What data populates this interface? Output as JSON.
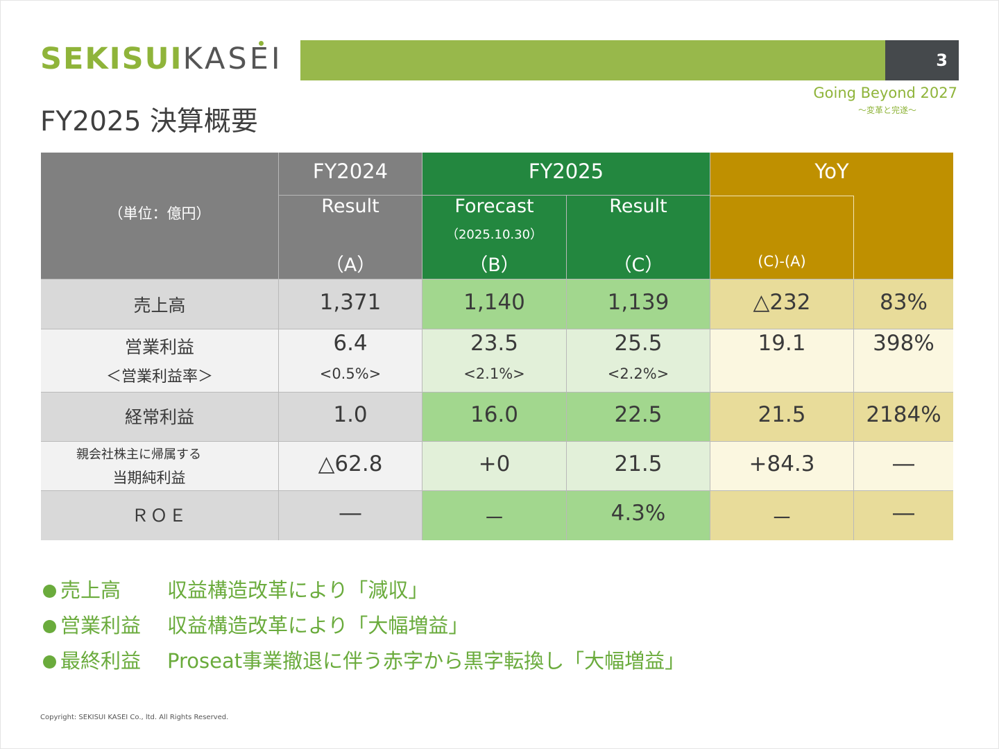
{
  "header": {
    "logo_bold": "SEKISUI",
    "logo_light": "KASEI",
    "page_number": "3",
    "slogan": "Going Beyond 2027",
    "slogan_sub": "～変革と完遂～",
    "title": "FY2025 決算概要"
  },
  "table": {
    "unit_label": "（単位：億円）",
    "fy2024": {
      "label": "FY2024",
      "sub": "Result",
      "code": "（A）"
    },
    "fy2025": {
      "label": "FY2025",
      "forecast": {
        "label": "Forecast",
        "date": "（2025.10.30）",
        "code": "（B）"
      },
      "result": {
        "label": "Result",
        "code": "（C）"
      }
    },
    "yoy": {
      "label": "YoY",
      "diff_label": "(C)-(A)"
    },
    "rows": [
      {
        "label": "売上高",
        "a": "1,371",
        "b": "1,140",
        "c": "1,139",
        "diff": "△232",
        "pct": "83%"
      },
      {
        "label": "営業利益",
        "sub_label": "＜営業利益率＞",
        "a": "6.4",
        "a_sub": "<0.5%>",
        "b": "23.5",
        "b_sub": "<2.1%>",
        "c": "25.5",
        "c_sub": "<2.2%>",
        "diff": "19.1",
        "pct": "398%"
      },
      {
        "label": "経常利益",
        "a": "1.0",
        "b": "16.0",
        "c": "22.5",
        "diff": "21.5",
        "pct": "2184%"
      },
      {
        "label": "親会社株主に帰属する",
        "sub_label": "当期純利益",
        "a": "△62.8",
        "b": "+0",
        "c": "21.5",
        "diff": "+84.3",
        "pct": "―"
      },
      {
        "label": "ＲＯＥ",
        "a": "―",
        "b": "－",
        "c": "4.3%",
        "diff": "－",
        "pct": "―"
      }
    ]
  },
  "bullets": [
    {
      "head": "売上高",
      "text": "収益構造改革により「減収」"
    },
    {
      "head": "営業利益",
      "text": "収益構造改革により「大幅増益」"
    },
    {
      "head": "最終利益",
      "text": "Proseat事業撤退に伴う赤字から黒字転換し「大幅増益」"
    }
  ],
  "copyright": "Copyright: SEKISUI KASEI Co., ltd. All Rights Reserved.",
  "colors": {
    "brand_green": "#8fb43a",
    "header_bar": "#98b84b",
    "fy2025_green": "#23873f",
    "yoy_gold": "#bf9000"
  }
}
